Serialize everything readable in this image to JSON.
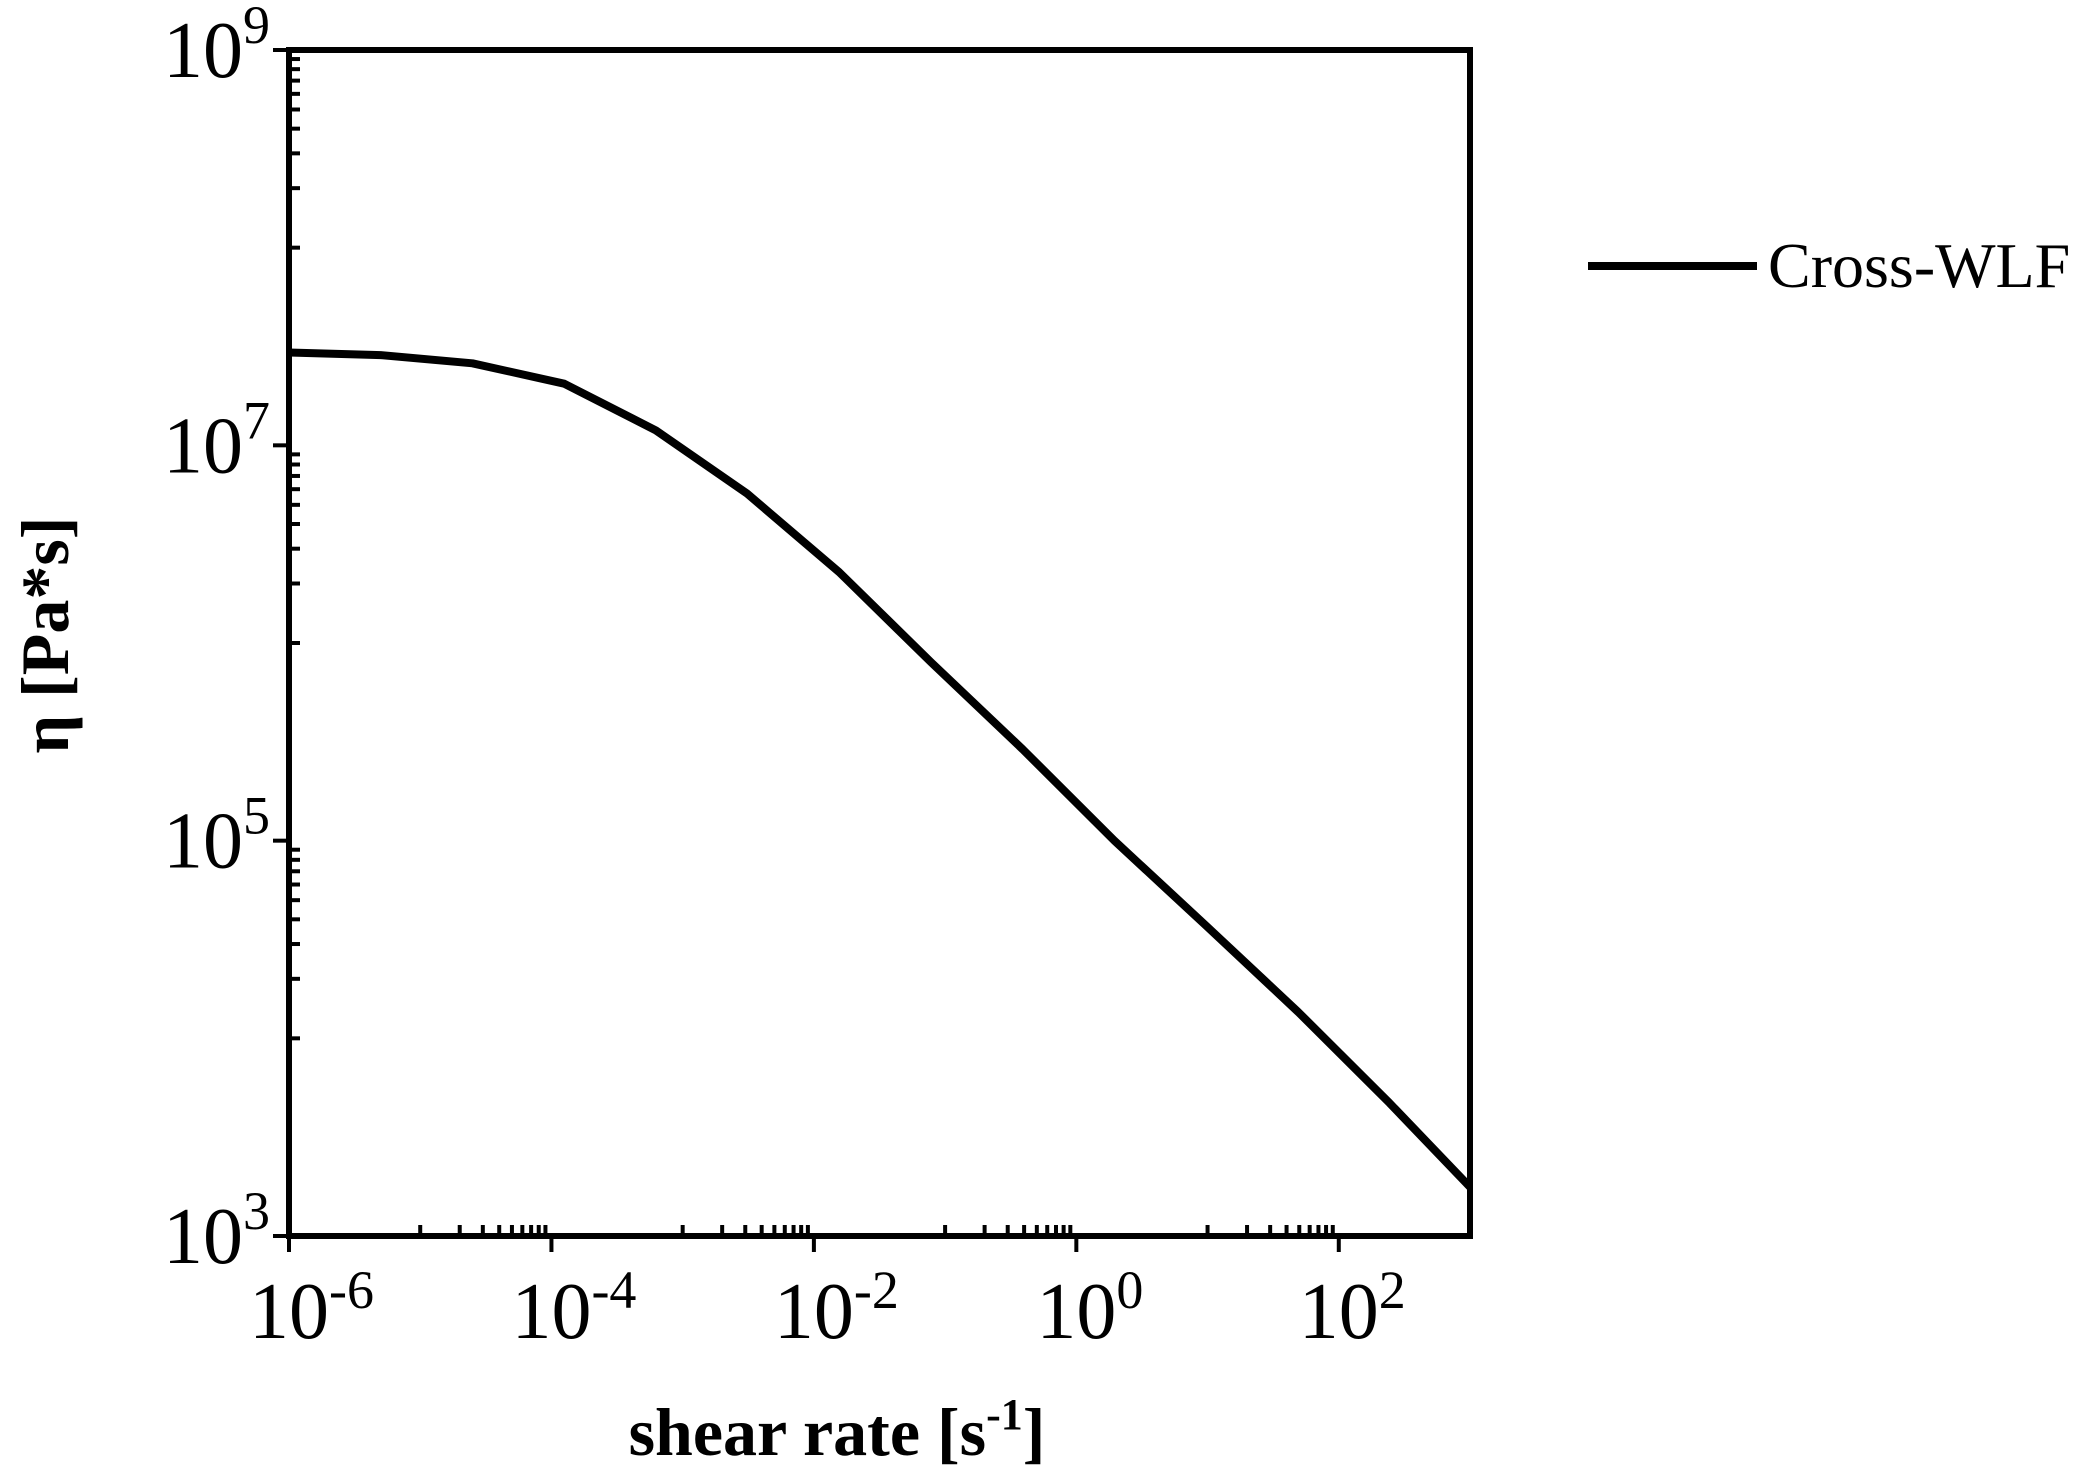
{
  "chart_data": {
    "type": "line",
    "x_scale": "log",
    "y_scale": "log",
    "xlim": [
      1e-06,
      1000
    ],
    "ylim": [
      1000,
      1000000000
    ],
    "grid": false,
    "legend_placement": "right",
    "xlabel": {
      "text": "shear rate [s",
      "superscript": "-1",
      "suffix": "]"
    },
    "ylabel": {
      "text": "η [Pa*s]"
    },
    "x_ticks": [
      1e-06,
      0.0001,
      0.01,
      1,
      100
    ],
    "x_tick_labels": [
      {
        "base": "10",
        "exp": "-6"
      },
      {
        "base": "10",
        "exp": "-4"
      },
      {
        "base": "10",
        "exp": "-2"
      },
      {
        "base": "10",
        "exp": "0"
      },
      {
        "base": "10",
        "exp": "2"
      }
    ],
    "y_ticks": [
      1000,
      100000,
      10000000,
      1000000000
    ],
    "y_tick_labels": [
      {
        "base": "10",
        "exp": "3"
      },
      {
        "base": "10",
        "exp": "5"
      },
      {
        "base": "10",
        "exp": "7"
      },
      {
        "base": "10",
        "exp": "9"
      }
    ],
    "series": [
      {
        "name": "Cross-WLF",
        "color": "#000000",
        "x": [
          1e-06,
          5e-06,
          2.5e-05,
          0.000125,
          0.000625,
          0.0031,
          0.0156,
          0.078,
          0.39,
          1.95,
          9.8,
          49,
          244,
          1000
        ],
        "y": [
          29500000.0,
          28600000.0,
          26000000.0,
          20500000.0,
          11900000.0,
          5700000.0,
          2280000.0,
          800000.0,
          290000.0,
          100000.0,
          37000.0,
          13600.0,
          4700.0,
          1770.0
        ]
      }
    ]
  }
}
